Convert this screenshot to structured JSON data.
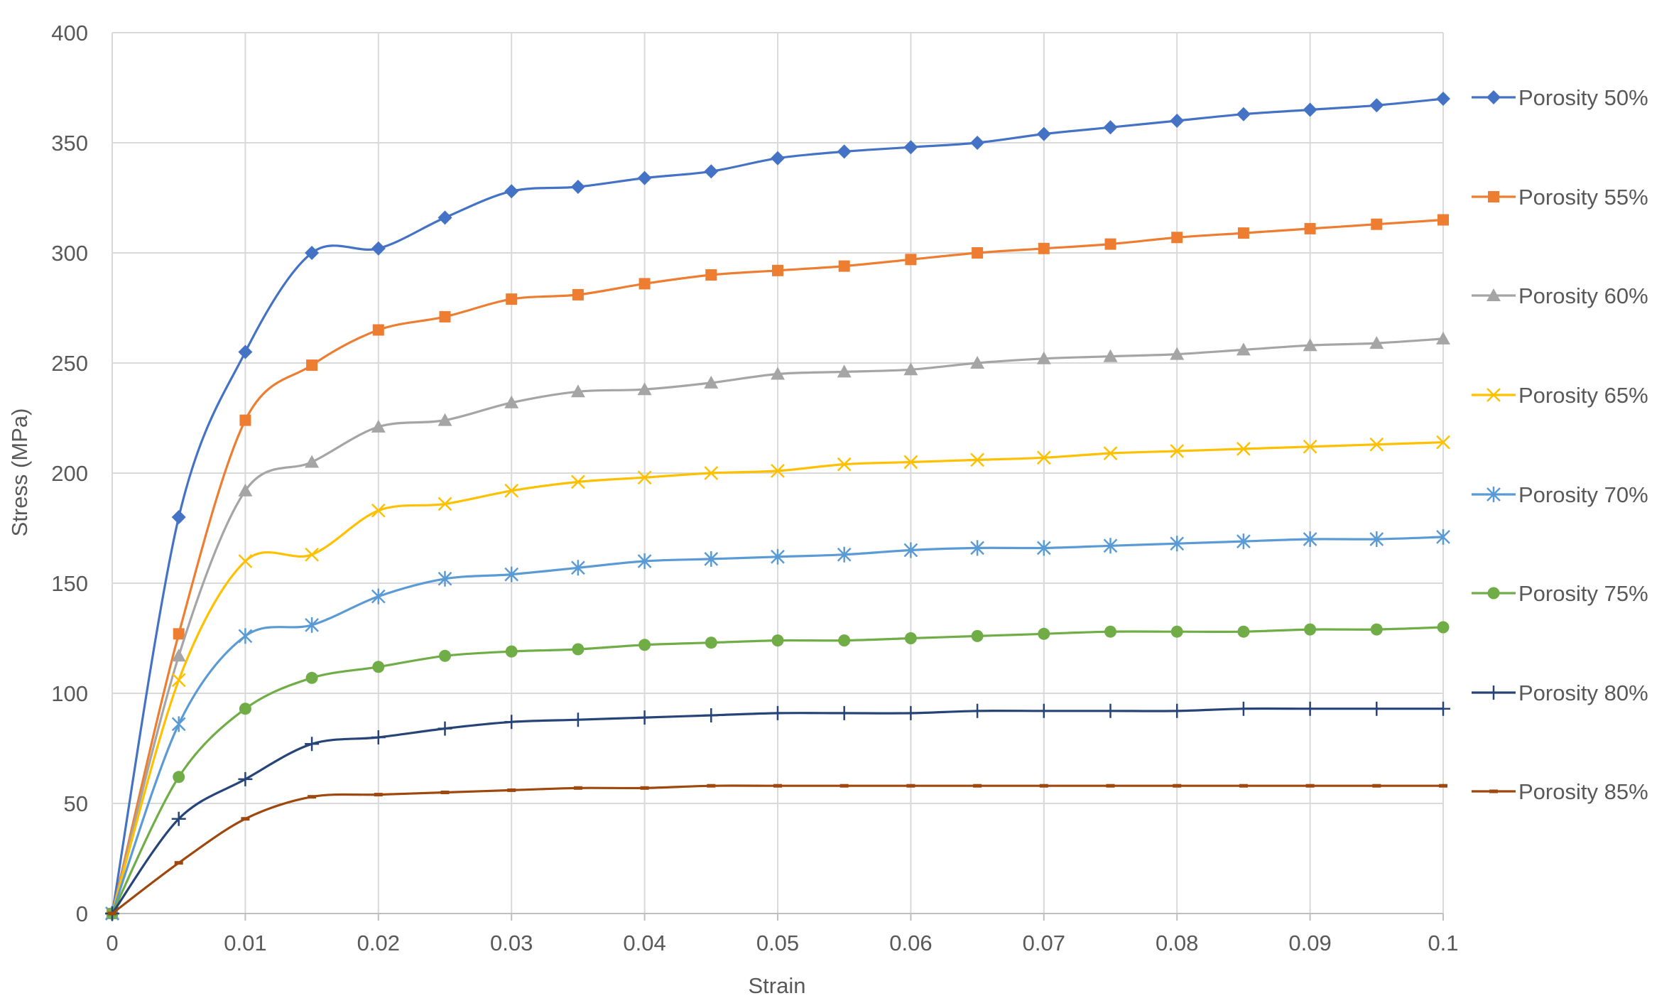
{
  "chart_data": {
    "type": "line",
    "title": "",
    "xlabel": "Strain",
    "ylabel": "Stress (MPa)",
    "xlim": [
      0,
      0.1
    ],
    "ylim": [
      0,
      400
    ],
    "x_ticks": [
      "0",
      "0.01",
      "0.02",
      "0.03",
      "0.04",
      "0.05",
      "0.06",
      "0.07",
      "0.08",
      "0.09",
      "0.1"
    ],
    "y_ticks": [
      "0",
      "50",
      "100",
      "150",
      "200",
      "250",
      "300",
      "350",
      "400"
    ],
    "grid": true,
    "legend_position": "right",
    "x": [
      0,
      0.005,
      0.01,
      0.015,
      0.02,
      0.025,
      0.03,
      0.035,
      0.04,
      0.045,
      0.05,
      0.055,
      0.06,
      0.065,
      0.07,
      0.075,
      0.08,
      0.085,
      0.09,
      0.095,
      0.1
    ],
    "series": [
      {
        "name": "Porosity 50%",
        "color": "#4472C4",
        "marker": "diamond",
        "values": [
          0,
          180,
          255,
          300,
          302,
          316,
          328,
          330,
          334,
          337,
          343,
          346,
          348,
          350,
          354,
          357,
          360,
          363,
          365,
          367,
          370
        ]
      },
      {
        "name": "Porosity 55%",
        "color": "#ED7D31",
        "marker": "square",
        "values": [
          0,
          127,
          224,
          249,
          265,
          271,
          279,
          281,
          286,
          290,
          292,
          294,
          297,
          300,
          302,
          304,
          307,
          309,
          311,
          313,
          315
        ]
      },
      {
        "name": "Porosity 60%",
        "color": "#A5A5A5",
        "marker": "triangle",
        "values": [
          0,
          117,
          192,
          205,
          221,
          224,
          232,
          237,
          238,
          241,
          245,
          246,
          247,
          250,
          252,
          253,
          254,
          256,
          258,
          259,
          261
        ]
      },
      {
        "name": "Porosity 65%",
        "color": "#FFC000",
        "marker": "x",
        "values": [
          0,
          106,
          160,
          163,
          183,
          186,
          192,
          196,
          198,
          200,
          201,
          204,
          205,
          206,
          207,
          209,
          210,
          211,
          212,
          213,
          214
        ]
      },
      {
        "name": "Porosity 70%",
        "color": "#5B9BD5",
        "marker": "star",
        "values": [
          0,
          86,
          126,
          131,
          144,
          152,
          154,
          157,
          160,
          161,
          162,
          163,
          165,
          166,
          166,
          167,
          168,
          169,
          170,
          170,
          171
        ]
      },
      {
        "name": "Porosity 75%",
        "color": "#70AD47",
        "marker": "circle",
        "values": [
          0,
          62,
          93,
          107,
          112,
          117,
          119,
          120,
          122,
          123,
          124,
          124,
          125,
          126,
          127,
          128,
          128,
          128,
          129,
          129,
          130
        ]
      },
      {
        "name": "Porosity 80%",
        "color": "#264478",
        "marker": "plus",
        "values": [
          0,
          43,
          61,
          77,
          80,
          84,
          87,
          88,
          89,
          90,
          91,
          91,
          91,
          92,
          92,
          92,
          92,
          93,
          93,
          93,
          93
        ]
      },
      {
        "name": "Porosity 85%",
        "color": "#9E480E",
        "marker": "dash",
        "values": [
          0,
          23,
          43,
          53,
          54,
          55,
          56,
          57,
          57,
          58,
          58,
          58,
          58,
          58,
          58,
          58,
          58,
          58,
          58,
          58,
          58
        ]
      }
    ]
  }
}
